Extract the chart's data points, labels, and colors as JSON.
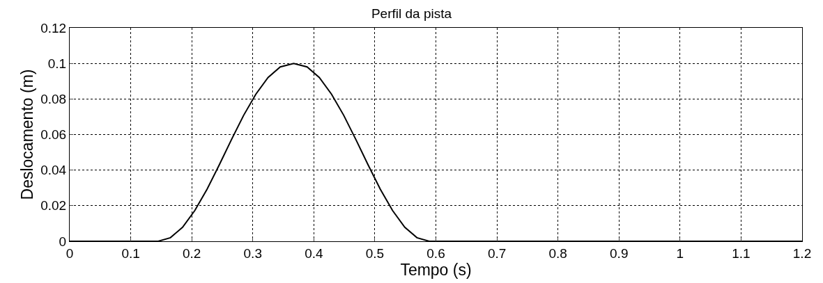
{
  "chart_data": {
    "type": "line",
    "title": "Perfil da pista",
    "xlabel": "Tempo (s)",
    "ylabel": "Deslocamento (m)",
    "x": [
      0,
      0.145,
      0.165,
      0.185,
      0.205,
      0.225,
      0.245,
      0.265,
      0.285,
      0.305,
      0.325,
      0.345,
      0.367,
      0.389,
      0.409,
      0.429,
      0.449,
      0.469,
      0.489,
      0.509,
      0.529,
      0.549,
      0.569,
      0.589,
      1.2
    ],
    "series": [
      {
        "color": "#000000",
        "values": [
          0,
          0,
          0.002,
          0.0079,
          0.0173,
          0.0292,
          0.0429,
          0.0571,
          0.0708,
          0.0827,
          0.0921,
          0.098,
          0.1,
          0.098,
          0.0921,
          0.0827,
          0.0708,
          0.0571,
          0.0429,
          0.0292,
          0.0173,
          0.0079,
          0.002,
          0,
          0
        ]
      }
    ],
    "xlim": [
      0,
      1.2
    ],
    "xticks": [
      0,
      0.1,
      0.2,
      0.3,
      0.4,
      0.5,
      0.6,
      0.7,
      0.8,
      0.9,
      1,
      1.1,
      1.2
    ],
    "ylim": [
      0,
      0.12
    ],
    "yticks": [
      0,
      0.02,
      0.04,
      0.06,
      0.08,
      0.1,
      0.12
    ],
    "grid": true,
    "line_style": "solid",
    "marker": "none"
  }
}
